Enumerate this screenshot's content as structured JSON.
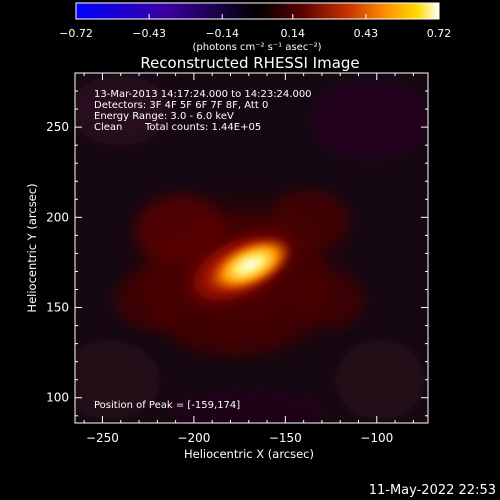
{
  "chart_data": {
    "type": "heatmap",
    "title": "Reconstructed RHESSI Image",
    "xlabel": "Heliocentric X (arcsec)",
    "ylabel": "Heliocentric Y (arcsec)",
    "xlim": [
      -265,
      -72
    ],
    "ylim": [
      86,
      280
    ],
    "x_ticks": [
      -250,
      -200,
      -150,
      -100
    ],
    "y_ticks": [
      100,
      150,
      200,
      250
    ],
    "colorbar": {
      "min": -0.72,
      "max": 0.72,
      "ticks": [
        -0.72,
        -0.43,
        -0.14,
        0.14,
        0.43,
        0.72
      ],
      "tick_labels": [
        "−0.72",
        "−0.43",
        "−0.14",
        "0.14",
        "0.43",
        "0.72"
      ],
      "unit_label": "(photons cm⁻² s⁻¹ asec⁻²)"
    },
    "peak": {
      "x": -159,
      "y": 174
    },
    "colormap": [
      "#0000ff",
      "#3a00a0",
      "#000000",
      "#5a0000",
      "#c83200",
      "#ff8c00",
      "#ffdc00",
      "#ffffff"
    ],
    "background_color": "#160812"
  },
  "annotations": {
    "time_range": "13-Mar-2013 14:17:24.000 to 14:23:24.000",
    "detectors": "Detectors: 3F 4F 5F 6F 7F 8F, Att 0",
    "energy_range": "Energy Range: 3.0 - 6.0 keV",
    "clean_label": "Clean",
    "total_counts": "Total counts: 1.44E+05",
    "position_of_peak": "Position of Peak = [-159,174]"
  },
  "footer": {
    "timestamp": "11-May-2022 22:53"
  }
}
